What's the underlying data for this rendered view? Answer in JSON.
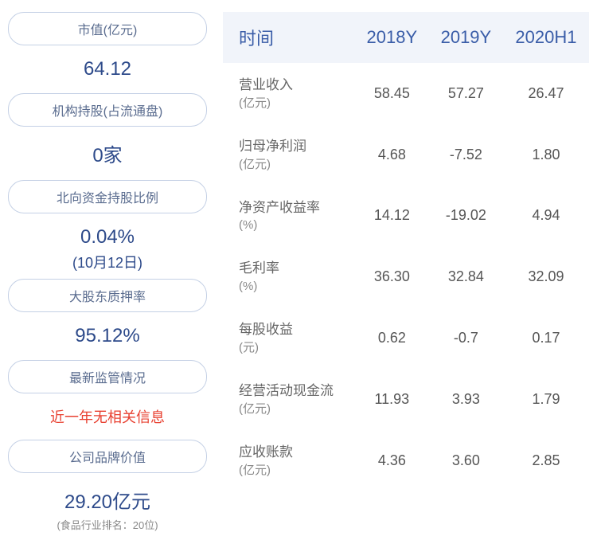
{
  "leftPanel": {
    "items": [
      {
        "label": "市值(亿元)",
        "value": "64.12",
        "sub": null,
        "valueClass": "value-primary"
      },
      {
        "label": "机构持股(占流通盘)",
        "value": "0家",
        "sub": null,
        "valueClass": "value-primary"
      },
      {
        "label": "北向资金持股比例",
        "value": "0.04%",
        "sub": "(10月12日)",
        "valueClass": "value-primary"
      },
      {
        "label": "大股东质押率",
        "value": "95.12%",
        "sub": null,
        "valueClass": "value-primary"
      },
      {
        "label": "最新监管情况",
        "value": "近一年无相关信息",
        "sub": null,
        "valueClass": "value-warning"
      },
      {
        "label": "公司品牌价值",
        "value": "29.20亿元",
        "sub": "(食品行业排名：20位)",
        "valueClass": "value-primary"
      }
    ]
  },
  "table": {
    "headers": [
      "时间",
      "2018Y",
      "2019Y",
      "2020H1"
    ],
    "rows": [
      {
        "metric": "营业收入",
        "unit": "(亿元)",
        "values": [
          "58.45",
          "57.27",
          "26.47"
        ]
      },
      {
        "metric": "归母净利润",
        "unit": "(亿元)",
        "values": [
          "4.68",
          "-7.52",
          "1.80"
        ]
      },
      {
        "metric": "净资产收益率",
        "unit": "(%)",
        "values": [
          "14.12",
          "-19.02",
          "4.94"
        ]
      },
      {
        "metric": "毛利率",
        "unit": "(%)",
        "values": [
          "36.30",
          "32.84",
          "32.09"
        ]
      },
      {
        "metric": "每股收益",
        "unit": "(元)",
        "values": [
          "0.62",
          "-0.7",
          "0.17"
        ]
      },
      {
        "metric": "经营活动现金流",
        "unit": "(亿元)",
        "values": [
          "11.93",
          "3.93",
          "1.79"
        ]
      },
      {
        "metric": "应收账款",
        "unit": "(亿元)",
        "values": [
          "4.36",
          "3.60",
          "2.85"
        ]
      }
    ]
  },
  "colors": {
    "pillBorder": "#c4d0e5",
    "pillText": "#5a6c8f",
    "primaryValue": "#2d4a8a",
    "warningValue": "#e84030",
    "headerBg": "#f1f4fa",
    "headerText": "#3a5da8",
    "cellText": "#555"
  }
}
